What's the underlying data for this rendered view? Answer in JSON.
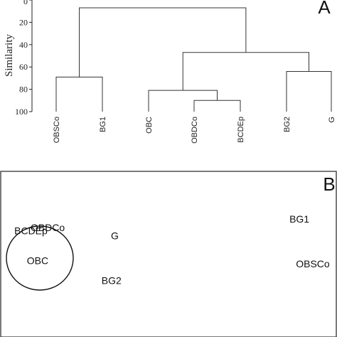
{
  "chart_data": [
    {
      "panel": "A",
      "type": "dendrogram",
      "ylabel": "Similarity",
      "ylim": [
        0,
        100
      ],
      "yticks": [
        0,
        20,
        40,
        60,
        80,
        100
      ],
      "y_inverted": true,
      "leaves": [
        "OBSCo",
        "BG1",
        "OBC",
        "OBDCo",
        "BCDEp",
        "BG2",
        "G"
      ],
      "merges": [
        {
          "left": "OBDCo",
          "right": "BCDEp",
          "height": 90
        },
        {
          "left": "OBC",
          "right": "OBDCo+BCDEp",
          "height": 81
        },
        {
          "left": "OBSCo",
          "right": "BG1",
          "height": 69
        },
        {
          "left": "BG2",
          "right": "G",
          "height": 64
        },
        {
          "left": "OBC+OBDCo+BCDEp",
          "right": "BG2+G",
          "height": 47
        },
        {
          "left": "OBSCo+BG1",
          "right": "OBC+OBDCo+BCDEp+BG2+G",
          "height": 7
        }
      ]
    },
    {
      "panel": "B",
      "type": "scatter",
      "points": [
        {
          "label": "OBDCo",
          "x": 0.14,
          "y": 0.64
        },
        {
          "label": "BCDEp",
          "x": 0.09,
          "y": 0.62
        },
        {
          "label": "OBC",
          "x": 0.11,
          "y": 0.44
        },
        {
          "label": "G",
          "x": 0.34,
          "y": 0.59
        },
        {
          "label": "BG2",
          "x": 0.33,
          "y": 0.32
        },
        {
          "label": "BG1",
          "x": 0.89,
          "y": 0.69
        },
        {
          "label": "OBSCo",
          "x": 0.93,
          "y": 0.42
        }
      ],
      "group_ellipse": [
        "OBDCo",
        "BCDEp",
        "OBC"
      ]
    }
  ]
}
